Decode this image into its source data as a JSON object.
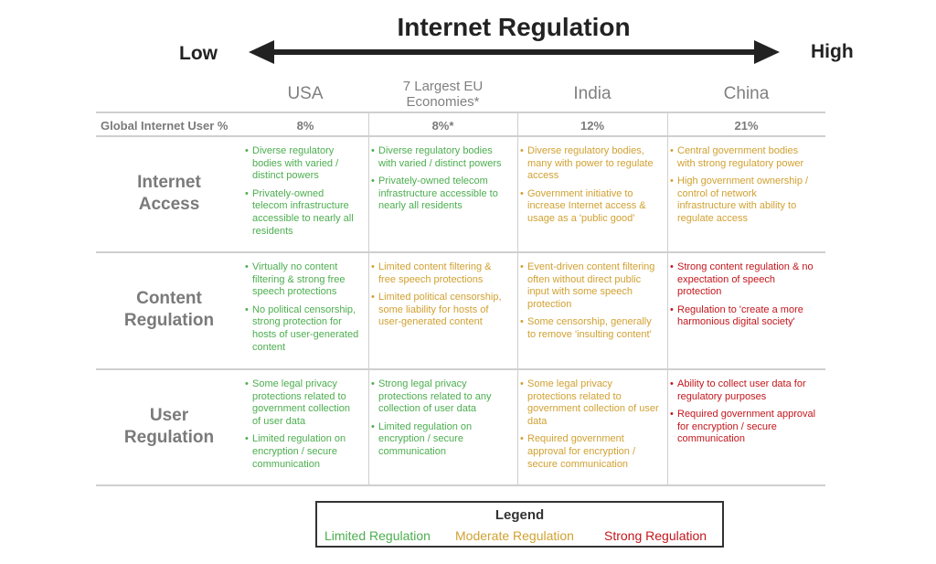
{
  "title": "Internet Regulation",
  "scale": {
    "low": "Low",
    "high": "High"
  },
  "colors": {
    "limited": "#4cae4f",
    "moderate": "#d1a132",
    "strong": "#c3161c"
  },
  "columns": [
    "USA",
    "7 Largest EU Economies*",
    "India",
    "China"
  ],
  "user_pct": {
    "label": "Global Internet User %",
    "values": [
      "8%",
      "8%*",
      "12%",
      "21%"
    ]
  },
  "rows": [
    {
      "label": "Internet Access",
      "cells": [
        {
          "level": "limited",
          "bullets": [
            "Diverse regulatory bodies with varied / distinct powers",
            "Privately-owned telecom infrastructure accessible to nearly all residents"
          ]
        },
        {
          "level": "limited",
          "bullets": [
            "Diverse regulatory bodies with varied / distinct powers",
            "Privately-owned telecom infrastructure accessible to nearly all residents"
          ]
        },
        {
          "level": "moderate",
          "bullets": [
            "Diverse regulatory bodies, many with power to regulate access",
            "Government initiative to increase Internet access & usage as a 'public good'"
          ]
        },
        {
          "level": "moderate",
          "bullets": [
            "Central government bodies with strong regulatory power",
            "High government ownership / control of network infrastructure with ability to regulate access"
          ]
        }
      ]
    },
    {
      "label": "Content Regulation",
      "cells": [
        {
          "level": "limited",
          "bullets": [
            "Virtually no content filtering & strong free speech protections",
            "No political censorship, strong protection for hosts of user-generated content"
          ]
        },
        {
          "level": "moderate",
          "bullets": [
            "Limited content filtering & free speech protections",
            "Limited political censorship, some liability for hosts of user-generated content"
          ]
        },
        {
          "level": "moderate",
          "bullets": [
            "Event-driven content filtering often without direct public input with some speech protection",
            "Some censorship, generally to remove 'insulting content'"
          ]
        },
        {
          "level": "strong",
          "bullets": [
            "Strong content regulation & no expectation of speech protection",
            "Regulation to 'create a more harmonious digital society'"
          ]
        }
      ]
    },
    {
      "label": "User Regulation",
      "cells": [
        {
          "level": "limited",
          "bullets": [
            "Some legal privacy protections related to government collection of user data",
            "Limited regulation on encryption / secure communication"
          ]
        },
        {
          "level": "limited",
          "bullets": [
            "Strong legal privacy protections related to any collection of user data",
            "Limited regulation on encryption / secure communication"
          ]
        },
        {
          "level": "moderate",
          "bullets": [
            "Some legal privacy protections related to government collection of user data",
            "Required government approval for encryption / secure communication"
          ]
        },
        {
          "level": "strong",
          "bullets": [
            "Ability to collect user data for regulatory purposes",
            "Required government approval for encryption / secure communication"
          ]
        }
      ]
    }
  ],
  "legend": {
    "title": "Legend",
    "items": [
      {
        "label": "Limited Regulation",
        "level": "limited"
      },
      {
        "label": "Moderate Regulation",
        "level": "moderate"
      },
      {
        "label": "Strong Regulation",
        "level": "strong"
      }
    ]
  }
}
